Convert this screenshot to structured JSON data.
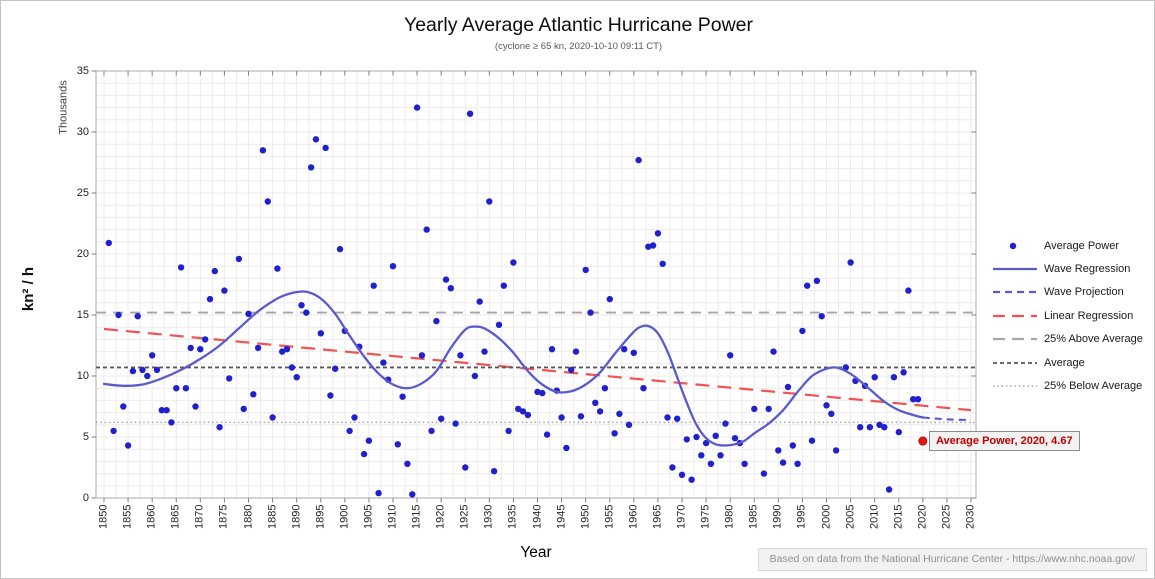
{
  "header": {
    "title": "Yearly Average Atlantic Hurricane Power",
    "subtitle": "(cyclone ≥ 65 kn, 2020-10-10 09:11 CT)"
  },
  "axis_titles": {
    "x": "Year",
    "y": "kn² / h",
    "y_units": "Thousands"
  },
  "annotation": {
    "text": "Average Power, 2020, 4.67",
    "year": 2020,
    "value": 4.67
  },
  "footer": {
    "text": "Based on data from the National Hurricane Center - https://www.nhc.noaa.gov/"
  },
  "colors": {
    "scatter_dot": "#2020cd",
    "wave_line": "#5a5ad0",
    "linear_regression": "#f25252",
    "reference_gray": "#a6a6a6",
    "average_line": "#595959",
    "highlight_dot": "#e21414",
    "annotation_text": "#c00000",
    "grid": "#ebebeb",
    "plot_border": "#ababab",
    "tick": "#808080"
  },
  "legend": {
    "items": [
      {
        "label": "Average Power",
        "marker": "dot",
        "color": "#2020cd"
      },
      {
        "label": "Wave Regression",
        "marker": "solid",
        "color": "#5a5ad0"
      },
      {
        "label": "Wave Projection",
        "marker": "dash",
        "color": "#5a5ad0"
      },
      {
        "label": "Linear Regression",
        "marker": "longdash",
        "color": "#f25252"
      },
      {
        "label": "25% Above Average",
        "marker": "longdash",
        "color": "#a6a6a6"
      },
      {
        "label": "Average",
        "marker": "shortdash",
        "color": "#595959"
      },
      {
        "label": "25% Below Average",
        "marker": "dotted",
        "color": "#a6a6a6"
      }
    ]
  },
  "chart_data": {
    "type": "scatter",
    "title": "Yearly Average Atlantic Hurricane Power",
    "subtitle": "(cyclone ≥ 65 kn, 2020-10-10 09:11 CT)",
    "xlabel": "Year",
    "ylabel": "kn² / h",
    "y_units": "Thousands",
    "xlim": [
      1850,
      2030
    ],
    "ylim": [
      0,
      35
    ],
    "x_ticks": [
      1850,
      1855,
      1860,
      1865,
      1870,
      1875,
      1880,
      1885,
      1890,
      1895,
      1900,
      1905,
      1910,
      1915,
      1920,
      1925,
      1930,
      1935,
      1940,
      1945,
      1950,
      1955,
      1960,
      1965,
      1970,
      1975,
      1980,
      1985,
      1990,
      1995,
      2000,
      2005,
      2010,
      2015,
      2020,
      2025,
      2030
    ],
    "y_ticks": [
      0,
      5,
      10,
      15,
      20,
      25,
      30,
      35
    ],
    "grid": {
      "x_minor_step": 2.5,
      "y_minor_step": 1
    },
    "legend_position": "right",
    "points": [
      [
        1851,
        20.9
      ],
      [
        1852,
        5.5
      ],
      [
        1853,
        15.0
      ],
      [
        1854,
        7.5
      ],
      [
        1855,
        4.3
      ],
      [
        1856,
        10.4
      ],
      [
        1857,
        14.9
      ],
      [
        1858,
        10.5
      ],
      [
        1859,
        10.0
      ],
      [
        1860,
        11.7
      ],
      [
        1861,
        10.5
      ],
      [
        1862,
        7.2
      ],
      [
        1863,
        7.2
      ],
      [
        1864,
        6.2
      ],
      [
        1865,
        9.0
      ],
      [
        1866,
        18.9
      ],
      [
        1867,
        9.0
      ],
      [
        1868,
        12.3
      ],
      [
        1869,
        7.5
      ],
      [
        1870,
        12.2
      ],
      [
        1871,
        13.0
      ],
      [
        1872,
        16.3
      ],
      [
        1873,
        18.6
      ],
      [
        1874,
        5.8
      ],
      [
        1875,
        17.0
      ],
      [
        1876,
        9.8
      ],
      [
        1878,
        19.6
      ],
      [
        1879,
        7.3
      ],
      [
        1880,
        15.1
      ],
      [
        1881,
        8.5
      ],
      [
        1882,
        12.3
      ],
      [
        1883,
        28.5
      ],
      [
        1884,
        24.3
      ],
      [
        1885,
        6.6
      ],
      [
        1886,
        18.8
      ],
      [
        1887,
        12.0
      ],
      [
        1888,
        12.2
      ],
      [
        1889,
        10.7
      ],
      [
        1890,
        9.9
      ],
      [
        1891,
        15.8
      ],
      [
        1892,
        15.2
      ],
      [
        1893,
        27.1
      ],
      [
        1894,
        29.4
      ],
      [
        1895,
        13.5
      ],
      [
        1896,
        28.7
      ],
      [
        1897,
        8.4
      ],
      [
        1898,
        10.6
      ],
      [
        1899,
        20.4
      ],
      [
        1900,
        13.7
      ],
      [
        1901,
        5.5
      ],
      [
        1902,
        6.6
      ],
      [
        1903,
        12.4
      ],
      [
        1904,
        3.6
      ],
      [
        1905,
        4.7
      ],
      [
        1906,
        17.4
      ],
      [
        1907,
        0.4
      ],
      [
        1908,
        11.1
      ],
      [
        1909,
        9.7
      ],
      [
        1910,
        19.0
      ],
      [
        1911,
        4.4
      ],
      [
        1912,
        8.3
      ],
      [
        1913,
        2.8
      ],
      [
        1914,
        0.3
      ],
      [
        1915,
        32.0
      ],
      [
        1916,
        11.7
      ],
      [
        1917,
        22.0
      ],
      [
        1918,
        5.5
      ],
      [
        1919,
        14.5
      ],
      [
        1920,
        6.5
      ],
      [
        1921,
        17.9
      ],
      [
        1922,
        17.2
      ],
      [
        1923,
        6.1
      ],
      [
        1924,
        11.7
      ],
      [
        1925,
        2.5
      ],
      [
        1926,
        31.5
      ],
      [
        1927,
        10.0
      ],
      [
        1928,
        16.1
      ],
      [
        1929,
        12.0
      ],
      [
        1930,
        24.3
      ],
      [
        1931,
        2.2
      ],
      [
        1932,
        14.2
      ],
      [
        1933,
        17.4
      ],
      [
        1934,
        5.5
      ],
      [
        1935,
        19.3
      ],
      [
        1936,
        7.3
      ],
      [
        1937,
        7.1
      ],
      [
        1938,
        6.8
      ],
      [
        1940,
        8.7
      ],
      [
        1941,
        8.6
      ],
      [
        1942,
        5.2
      ],
      [
        1943,
        12.2
      ],
      [
        1944,
        8.8
      ],
      [
        1945,
        6.6
      ],
      [
        1946,
        4.1
      ],
      [
        1947,
        10.5
      ],
      [
        1948,
        12.0
      ],
      [
        1949,
        6.7
      ],
      [
        1950,
        18.7
      ],
      [
        1951,
        15.2
      ],
      [
        1952,
        7.8
      ],
      [
        1953,
        7.1
      ],
      [
        1954,
        9.0
      ],
      [
        1955,
        16.3
      ],
      [
        1956,
        5.3
      ],
      [
        1957,
        6.9
      ],
      [
        1958,
        12.2
      ],
      [
        1959,
        6.0
      ],
      [
        1960,
        11.9
      ],
      [
        1961,
        27.7
      ],
      [
        1962,
        9.0
      ],
      [
        1963,
        20.6
      ],
      [
        1964,
        20.7
      ],
      [
        1965,
        21.7
      ],
      [
        1966,
        19.2
      ],
      [
        1967,
        6.6
      ],
      [
        1968,
        2.5
      ],
      [
        1969,
        6.5
      ],
      [
        1970,
        1.9
      ],
      [
        1971,
        4.8
      ],
      [
        1972,
        1.5
      ],
      [
        1973,
        5.0
      ],
      [
        1974,
        3.5
      ],
      [
        1975,
        4.5
      ],
      [
        1976,
        2.8
      ],
      [
        1977,
        5.1
      ],
      [
        1978,
        3.5
      ],
      [
        1979,
        6.1
      ],
      [
        1980,
        11.7
      ],
      [
        1981,
        4.9
      ],
      [
        1982,
        4.5
      ],
      [
        1983,
        2.8
      ],
      [
        1985,
        7.3
      ],
      [
        1987,
        2.0
      ],
      [
        1988,
        7.3
      ],
      [
        1989,
        12.0
      ],
      [
        1990,
        3.9
      ],
      [
        1991,
        2.9
      ],
      [
        1992,
        9.1
      ],
      [
        1993,
        4.3
      ],
      [
        1994,
        2.8
      ],
      [
        1995,
        13.7
      ],
      [
        1996,
        17.4
      ],
      [
        1997,
        4.7
      ],
      [
        1998,
        17.8
      ],
      [
        1999,
        14.9
      ],
      [
        2000,
        7.6
      ],
      [
        2001,
        6.9
      ],
      [
        2002,
        3.9
      ],
      [
        2004,
        10.7
      ],
      [
        2005,
        19.3
      ],
      [
        2006,
        9.6
      ],
      [
        2007,
        5.8
      ],
      [
        2008,
        9.2
      ],
      [
        2009,
        5.8
      ],
      [
        2010,
        9.9
      ],
      [
        2011,
        6.0
      ],
      [
        2012,
        5.8
      ],
      [
        2013,
        0.7
      ],
      [
        2014,
        9.9
      ],
      [
        2015,
        5.4
      ],
      [
        2016,
        10.3
      ],
      [
        2017,
        17.0
      ],
      [
        2018,
        8.1
      ],
      [
        2019,
        8.1
      ]
    ],
    "highlight_point": {
      "name": "Average Power",
      "year": 2020,
      "value": 4.67
    },
    "series": [
      {
        "name": "Wave Regression",
        "type": "smooth-line",
        "points": [
          [
            1850,
            9.35
          ],
          [
            1854,
            9.2
          ],
          [
            1858,
            9.3
          ],
          [
            1862,
            9.8
          ],
          [
            1866,
            10.5
          ],
          [
            1870,
            11.4
          ],
          [
            1874,
            12.5
          ],
          [
            1878,
            13.9
          ],
          [
            1882,
            15.3
          ],
          [
            1886,
            16.35
          ],
          [
            1889,
            16.8
          ],
          [
            1892,
            16.9
          ],
          [
            1895,
            16.35
          ],
          [
            1898,
            15.1
          ],
          [
            1901,
            13.3
          ],
          [
            1904,
            11.6
          ],
          [
            1907,
            10.2
          ],
          [
            1910,
            9.3
          ],
          [
            1913,
            9.0
          ],
          [
            1916,
            9.4
          ],
          [
            1919,
            10.4
          ],
          [
            1922,
            12.3
          ],
          [
            1925,
            13.8
          ],
          [
            1927,
            14.05
          ],
          [
            1929,
            13.9
          ],
          [
            1932,
            13.1
          ],
          [
            1935,
            11.9
          ],
          [
            1938,
            10.4
          ],
          [
            1941,
            9.3
          ],
          [
            1944,
            8.7
          ],
          [
            1947,
            8.75
          ],
          [
            1950,
            9.3
          ],
          [
            1953,
            10.3
          ],
          [
            1956,
            11.8
          ],
          [
            1959,
            13.2
          ],
          [
            1961,
            13.95
          ],
          [
            1963,
            14.1
          ],
          [
            1965,
            13.5
          ],
          [
            1967,
            12.0
          ],
          [
            1969,
            9.9
          ],
          [
            1971,
            7.8
          ],
          [
            1973,
            6.0
          ],
          [
            1975,
            4.9
          ],
          [
            1977,
            4.4
          ],
          [
            1979,
            4.3
          ],
          [
            1981,
            4.4
          ],
          [
            1983,
            4.7
          ],
          [
            1985,
            5.3
          ],
          [
            1988,
            6.1
          ],
          [
            1991,
            7.2
          ],
          [
            1994,
            8.7
          ],
          [
            1997,
            10.0
          ],
          [
            2000,
            10.6
          ],
          [
            2002,
            10.7
          ],
          [
            2004,
            10.4
          ],
          [
            2006,
            9.9
          ],
          [
            2009,
            8.9
          ],
          [
            2012,
            7.9
          ],
          [
            2015,
            7.2
          ],
          [
            2018,
            6.8
          ],
          [
            2020,
            6.6
          ]
        ]
      },
      {
        "name": "Wave Projection",
        "type": "smooth-line-dashed",
        "points": [
          [
            2020,
            6.6
          ],
          [
            2023,
            6.5
          ],
          [
            2026,
            6.43
          ],
          [
            2030,
            6.4
          ]
        ]
      },
      {
        "name": "Linear Regression",
        "type": "line-dashed",
        "points": [
          [
            1850,
            13.85
          ],
          [
            2030,
            7.2
          ]
        ]
      },
      {
        "name": "25% Above Average",
        "type": "hline",
        "value": 15.2
      },
      {
        "name": "Average",
        "type": "hline",
        "value": 10.7
      },
      {
        "name": "25% Below Average",
        "type": "hline",
        "value": 6.2
      }
    ]
  }
}
